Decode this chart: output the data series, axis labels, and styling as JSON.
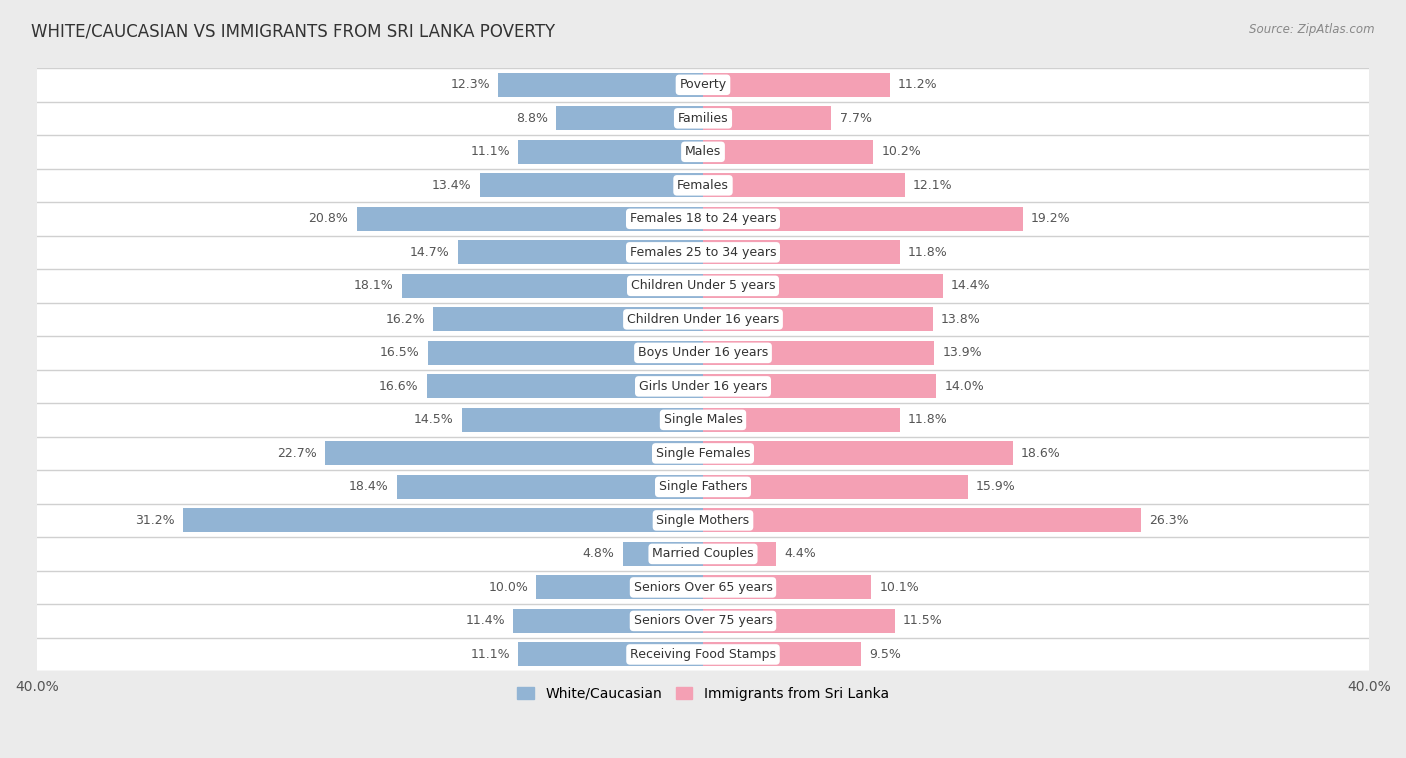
{
  "title": "WHITE/CAUCASIAN VS IMMIGRANTS FROM SRI LANKA POVERTY",
  "source": "Source: ZipAtlas.com",
  "categories": [
    "Poverty",
    "Families",
    "Males",
    "Females",
    "Females 18 to 24 years",
    "Females 25 to 34 years",
    "Children Under 5 years",
    "Children Under 16 years",
    "Boys Under 16 years",
    "Girls Under 16 years",
    "Single Males",
    "Single Females",
    "Single Fathers",
    "Single Mothers",
    "Married Couples",
    "Seniors Over 65 years",
    "Seniors Over 75 years",
    "Receiving Food Stamps"
  ],
  "white_values": [
    12.3,
    8.8,
    11.1,
    13.4,
    20.8,
    14.7,
    18.1,
    16.2,
    16.5,
    16.6,
    14.5,
    22.7,
    18.4,
    31.2,
    4.8,
    10.0,
    11.4,
    11.1
  ],
  "immigrant_values": [
    11.2,
    7.7,
    10.2,
    12.1,
    19.2,
    11.8,
    14.4,
    13.8,
    13.9,
    14.0,
    11.8,
    18.6,
    15.9,
    26.3,
    4.4,
    10.1,
    11.5,
    9.5
  ],
  "white_color": "#92b4d4",
  "immigrant_color": "#f4a0b4",
  "background_color": "#ebebeb",
  "row_bg_color": "#ffffff",
  "row_alt_bg": "#f5f5f5",
  "separator_color": "#d0d0d0",
  "xlim": 40.0,
  "legend_white": "White/Caucasian",
  "legend_immigrant": "Immigrants from Sri Lanka",
  "bar_height": 0.72,
  "label_fontsize": 9,
  "category_fontsize": 9,
  "title_fontsize": 12,
  "source_fontsize": 8.5,
  "value_color": "#555555",
  "single_mothers_label_color": "#ffffff"
}
